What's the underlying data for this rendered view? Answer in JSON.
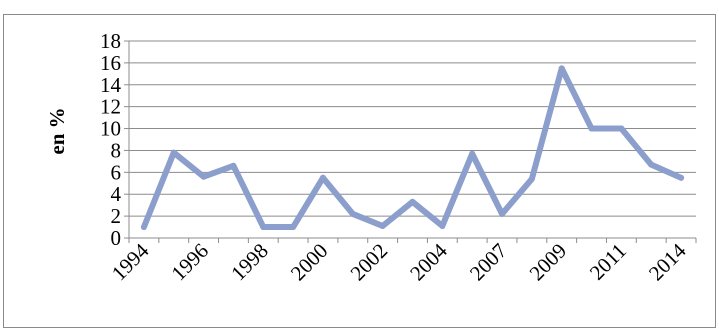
{
  "chart_data": {
    "type": "line",
    "title": "",
    "xlabel": "",
    "ylabel": "en %",
    "ylim": [
      0,
      18
    ],
    "y_ticks": [
      0,
      2,
      4,
      6,
      8,
      10,
      12,
      14,
      16,
      18
    ],
    "x_tick_labels": [
      "1994",
      "1996",
      "1998",
      "2000",
      "2002",
      "2004",
      "2007",
      "2009",
      "2011",
      "2014"
    ],
    "grid": true,
    "legend": "none",
    "series_color": "#8c9fcc",
    "x": [
      "1994",
      "1995",
      "1996",
      "1997",
      "1998",
      "1999",
      "2000",
      "2001",
      "2002",
      "2003",
      "2004",
      "2006",
      "2007",
      "2008",
      "2009",
      "2010",
      "2011",
      "2012",
      "2014"
    ],
    "series": [
      {
        "values": [
          1.0,
          7.8,
          5.6,
          6.6,
          1.0,
          1.0,
          5.5,
          2.2,
          1.1,
          3.3,
          1.1,
          7.7,
          2.2,
          5.4,
          15.5,
          10.0,
          10.0,
          6.7,
          5.5
        ]
      }
    ]
  }
}
